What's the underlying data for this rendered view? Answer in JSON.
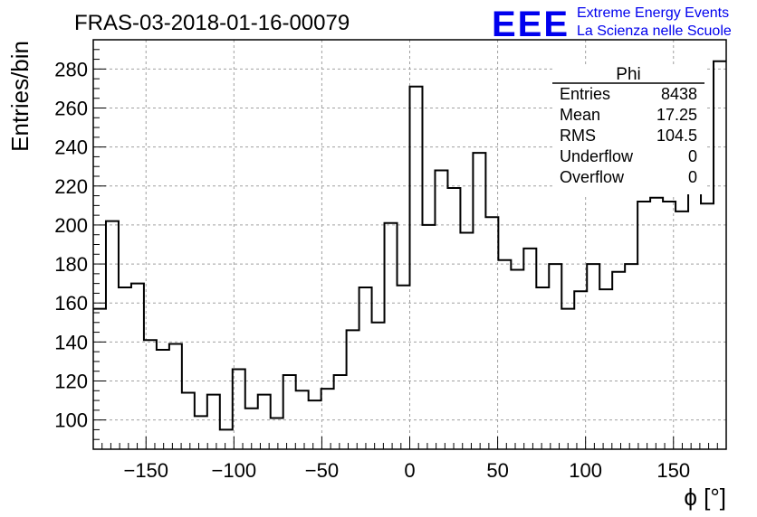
{
  "chart_data": {
    "type": "bar",
    "title": "FRAS-03-2018-01-16-00079",
    "xlabel": "ϕ [°]",
    "ylabel": "Entries/bin",
    "xlim": [
      -180,
      180
    ],
    "ylim": [
      85,
      295
    ],
    "grid": true,
    "bin_width": 7.2,
    "x_ticks": [
      -150,
      -100,
      -50,
      0,
      50,
      100,
      150
    ],
    "x_tick_labels": [
      "−150",
      "−100",
      "−50",
      "0",
      "50",
      "100",
      "150"
    ],
    "y_ticks": [
      100,
      120,
      140,
      160,
      180,
      200,
      220,
      240,
      260,
      280
    ],
    "y_tick_labels": [
      "100",
      "120",
      "140",
      "160",
      "180",
      "200",
      "220",
      "240",
      "260",
      "280"
    ],
    "bins": [
      -180,
      -172.8,
      -165.6,
      -158.4,
      -151.2,
      -144,
      -136.8,
      -129.6,
      -122.4,
      -115.2,
      -108,
      -100.8,
      -93.6,
      -86.4,
      -79.2,
      -72,
      -64.8,
      -57.6,
      -50.4,
      -43.2,
      -36,
      -28.8,
      -21.6,
      -14.4,
      -7.2,
      0,
      7.2,
      14.4,
      21.6,
      28.8,
      36,
      43.2,
      50.4,
      57.6,
      64.8,
      72,
      79.2,
      86.4,
      93.6,
      100.8,
      108,
      115.2,
      122.4,
      129.6,
      136.8,
      144,
      151.2,
      158.4,
      165.6,
      172.8
    ],
    "values": [
      157,
      202,
      168,
      170,
      141,
      136,
      139,
      114,
      102,
      113,
      95,
      126,
      106,
      113,
      101,
      123,
      115,
      110,
      116,
      123,
      146,
      168,
      150,
      201,
      169,
      271,
      200,
      228,
      219,
      196,
      237,
      204,
      182,
      177,
      188,
      168,
      180,
      157,
      166,
      180,
      167,
      176,
      180,
      212,
      214,
      212,
      207,
      217,
      211,
      284
    ],
    "stats_box": {
      "name": "Phi",
      "rows": [
        {
          "label": "Entries",
          "value": "8438"
        },
        {
          "label": "Mean",
          "value": "17.25"
        },
        {
          "label": "RMS",
          "value": "104.5"
        },
        {
          "label": "Underflow",
          "value": "0"
        },
        {
          "label": "Overflow",
          "value": "0"
        }
      ]
    },
    "legend": "top-right"
  },
  "logo": {
    "mark": "EEE",
    "line1": "Extreme Energy Events",
    "line2": "La Scienza nelle Scuole",
    "color": "#0000ee"
  }
}
